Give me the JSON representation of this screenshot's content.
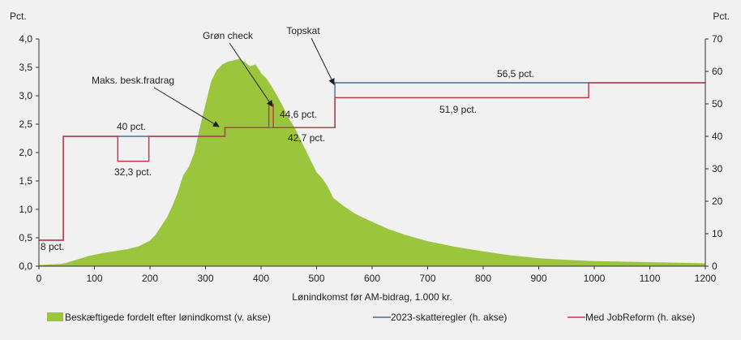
{
  "chart_data": {
    "type": "area+step-line",
    "title": "",
    "xlabel": "Lønindkomst før AM-bidrag, 1.000 kr.",
    "xlim": [
      0,
      1200
    ],
    "x_ticks": [
      0,
      100,
      200,
      300,
      400,
      500,
      600,
      700,
      800,
      900,
      1000,
      1100,
      1200
    ],
    "left_axis": {
      "label": "Pct.",
      "ylim": [
        0,
        4.0
      ],
      "ticks": [
        "0,0",
        "0,5",
        "1,0",
        "1,5",
        "2,0",
        "2,5",
        "3,0",
        "3,5",
        "4,0"
      ]
    },
    "right_axis": {
      "label": "Pct.",
      "ylim": [
        0,
        70
      ],
      "ticks": [
        "0",
        "10",
        "20",
        "30",
        "40",
        "50",
        "60",
        "70"
      ]
    },
    "grid": false,
    "legend_position": "bottom",
    "series": [
      {
        "name": "Beskæftigede fordelt efter lønindkomst (v. akse)",
        "kind": "area",
        "axis": "left",
        "color": "#9bc53d",
        "points": [
          [
            0,
            0.02
          ],
          [
            20,
            0.03
          ],
          [
            40,
            0.04
          ],
          [
            50,
            0.06
          ],
          [
            60,
            0.09
          ],
          [
            70,
            0.12
          ],
          [
            80,
            0.15
          ],
          [
            90,
            0.18
          ],
          [
            100,
            0.2
          ],
          [
            120,
            0.24
          ],
          [
            140,
            0.27
          ],
          [
            160,
            0.3
          ],
          [
            180,
            0.35
          ],
          [
            200,
            0.45
          ],
          [
            210,
            0.55
          ],
          [
            220,
            0.7
          ],
          [
            230,
            0.85
          ],
          [
            240,
            1.05
          ],
          [
            250,
            1.3
          ],
          [
            260,
            1.6
          ],
          [
            270,
            1.75
          ],
          [
            280,
            2.0
          ],
          [
            290,
            2.45
          ],
          [
            300,
            2.85
          ],
          [
            310,
            3.25
          ],
          [
            320,
            3.45
          ],
          [
            330,
            3.55
          ],
          [
            340,
            3.6
          ],
          [
            350,
            3.62
          ],
          [
            360,
            3.65
          ],
          [
            370,
            3.6
          ],
          [
            380,
            3.52
          ],
          [
            390,
            3.55
          ],
          [
            400,
            3.4
          ],
          [
            410,
            3.3
          ],
          [
            420,
            3.15
          ],
          [
            430,
            2.98
          ],
          [
            440,
            2.8
          ],
          [
            450,
            2.6
          ],
          [
            460,
            2.45
          ],
          [
            470,
            2.25
          ],
          [
            480,
            2.05
          ],
          [
            490,
            1.85
          ],
          [
            500,
            1.65
          ],
          [
            510,
            1.55
          ],
          [
            520,
            1.4
          ],
          [
            530,
            1.2
          ],
          [
            550,
            1.05
          ],
          [
            570,
            0.92
          ],
          [
            600,
            0.78
          ],
          [
            630,
            0.65
          ],
          [
            660,
            0.55
          ],
          [
            700,
            0.44
          ],
          [
            750,
            0.34
          ],
          [
            800,
            0.26
          ],
          [
            850,
            0.19
          ],
          [
            900,
            0.14
          ],
          [
            950,
            0.11
          ],
          [
            1000,
            0.09
          ],
          [
            1050,
            0.08
          ],
          [
            1100,
            0.07
          ],
          [
            1150,
            0.06
          ],
          [
            1200,
            0.05
          ]
        ]
      },
      {
        "name": "2023-skatteregler (h. akse)",
        "kind": "step",
        "axis": "right",
        "color": "#4b6e96",
        "points": [
          [
            0,
            8
          ],
          [
            44,
            8
          ],
          [
            44,
            40
          ],
          [
            335,
            40
          ],
          [
            335,
            42.7
          ],
          [
            533,
            42.7
          ],
          [
            533,
            56.5
          ],
          [
            1200,
            56.5
          ]
        ]
      },
      {
        "name": "Med JobReform (h. akse)",
        "kind": "step",
        "axis": "right",
        "color": "#c23b4b",
        "points": [
          [
            0,
            8
          ],
          [
            44,
            8
          ],
          [
            44,
            40
          ],
          [
            142,
            40
          ],
          [
            142,
            32.3
          ],
          [
            198,
            32.3
          ],
          [
            198,
            40
          ],
          [
            335,
            40
          ],
          [
            335,
            42.7
          ],
          [
            414,
            42.7
          ],
          [
            414,
            49.9
          ],
          [
            422,
            49.9
          ],
          [
            422,
            42.7
          ],
          [
            533,
            42.7
          ],
          [
            533,
            51.9
          ],
          [
            990,
            51.9
          ],
          [
            990,
            56.5
          ],
          [
            1200,
            56.5
          ]
        ]
      }
    ],
    "annotations": [
      {
        "id": "8pct",
        "text": "8 pct."
      },
      {
        "id": "40pct",
        "text": "40 pct."
      },
      {
        "id": "323pct",
        "text": "32,3 pct."
      },
      {
        "id": "maks",
        "text": "Maks. besk.fradrag"
      },
      {
        "id": "gron",
        "text": "Grøn check"
      },
      {
        "id": "446pct",
        "text": "44,6 pct."
      },
      {
        "id": "427pct",
        "text": "42,7 pct."
      },
      {
        "id": "topskat",
        "text": "Topskat"
      },
      {
        "id": "565pct",
        "text": "56,5 pct."
      },
      {
        "id": "519pct",
        "text": "51,9 pct."
      }
    ]
  }
}
